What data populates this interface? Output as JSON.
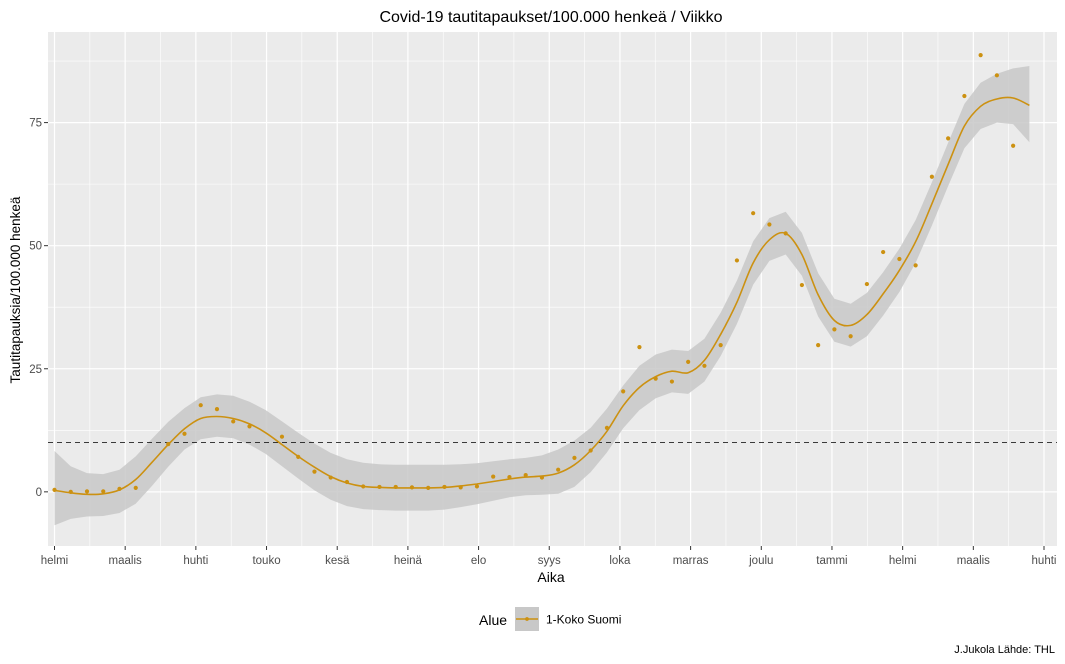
{
  "chart_data": {
    "type": "scatter",
    "title": "Covid-19 tautitapaukset/100.000 henkeä / Viikko",
    "xlabel": "Aika",
    "ylabel": "Tautitapauksia/100.000 henkeä",
    "x_ticks": [
      "helmi",
      "maalis",
      "huhti",
      "touko",
      "kesä",
      "heinä",
      "elo",
      "syys",
      "loka",
      "marras",
      "joulu",
      "tammi",
      "helmi",
      "maalis",
      "huhti"
    ],
    "x_unit": "weeks since start of data",
    "xlim": [
      -0.4,
      61.7
    ],
    "y_ticks": [
      0,
      25,
      50,
      75
    ],
    "ylim": [
      -11,
      93.4
    ],
    "reference_line": {
      "y": 10,
      "style": "dashed"
    },
    "legend": {
      "title": "Alue",
      "position": "bottom",
      "entries": [
        "1-Koko Suomi"
      ]
    },
    "grid": true,
    "colors": {
      "series": "#CC9111",
      "ribbon": "#C8C8C8",
      "panel": "#EBEBEB",
      "grid": "#FFFFFF"
    },
    "series": [
      {
        "name": "1-Koko Suomi",
        "points": [
          [
            0,
            0.4
          ],
          [
            1,
            0.0
          ],
          [
            2,
            0.1
          ],
          [
            3,
            0.1
          ],
          [
            4,
            0.6
          ],
          [
            5,
            0.8
          ],
          [
            7,
            9.7
          ],
          [
            8,
            11.8
          ],
          [
            9,
            17.6
          ],
          [
            10,
            16.8
          ],
          [
            11,
            14.3
          ],
          [
            12,
            13.3
          ],
          [
            14,
            11.2
          ],
          [
            15,
            7.1
          ],
          [
            16,
            4.1
          ],
          [
            17,
            2.9
          ],
          [
            18,
            2.0
          ],
          [
            19,
            1.1
          ],
          [
            20,
            1.0
          ],
          [
            21,
            1.0
          ],
          [
            22,
            0.9
          ],
          [
            23,
            0.8
          ],
          [
            24,
            1.0
          ],
          [
            25,
            0.9
          ],
          [
            26,
            1.1
          ],
          [
            27,
            3.1
          ],
          [
            28,
            3.0
          ],
          [
            29,
            3.4
          ],
          [
            30,
            2.9
          ],
          [
            31,
            4.5
          ],
          [
            32,
            6.9
          ],
          [
            33,
            8.4
          ],
          [
            34,
            13.0
          ],
          [
            35,
            20.4
          ],
          [
            36,
            29.4
          ],
          [
            37,
            23.0
          ],
          [
            38,
            22.4
          ],
          [
            39,
            26.4
          ],
          [
            40,
            25.6
          ],
          [
            41,
            29.8
          ],
          [
            42,
            47.0
          ],
          [
            43,
            56.6
          ],
          [
            44,
            54.3
          ],
          [
            45,
            52.5
          ],
          [
            46,
            42.0
          ],
          [
            47,
            29.8
          ],
          [
            48,
            33.0
          ],
          [
            49,
            31.6
          ],
          [
            50,
            42.2
          ],
          [
            51,
            48.7
          ],
          [
            52,
            47.3
          ],
          [
            53,
            46.0
          ],
          [
            54,
            64.0
          ],
          [
            55,
            71.8
          ],
          [
            56,
            80.4
          ],
          [
            57,
            88.7
          ],
          [
            58,
            84.6
          ],
          [
            59,
            70.3
          ]
        ],
        "smooth": [
          [
            0,
            0.3
          ],
          [
            1,
            -0.2
          ],
          [
            2,
            -0.5
          ],
          [
            3,
            -0.4
          ],
          [
            4,
            0.4
          ],
          [
            5,
            2.5
          ],
          [
            6,
            6.0
          ],
          [
            7,
            9.6
          ],
          [
            8,
            12.8
          ],
          [
            9,
            14.9
          ],
          [
            10,
            15.3
          ],
          [
            11,
            14.9
          ],
          [
            12,
            13.8
          ],
          [
            13,
            12.0
          ],
          [
            14,
            9.6
          ],
          [
            15,
            7.2
          ],
          [
            16,
            5.0
          ],
          [
            17,
            3.1
          ],
          [
            18,
            1.8
          ],
          [
            19,
            1.1
          ],
          [
            20,
            0.9
          ],
          [
            21,
            0.8
          ],
          [
            22,
            0.8
          ],
          [
            23,
            0.8
          ],
          [
            24,
            0.9
          ],
          [
            25,
            1.2
          ],
          [
            26,
            1.6
          ],
          [
            27,
            2.1
          ],
          [
            28,
            2.6
          ],
          [
            29,
            3.0
          ],
          [
            30,
            3.2
          ],
          [
            31,
            3.8
          ],
          [
            32,
            5.5
          ],
          [
            33,
            8.4
          ],
          [
            34,
            12.3
          ],
          [
            35,
            17.5
          ],
          [
            36,
            21.2
          ],
          [
            37,
            23.4
          ],
          [
            38,
            24.5
          ],
          [
            39,
            24.2
          ],
          [
            40,
            26.7
          ],
          [
            41,
            32.0
          ],
          [
            42,
            38.5
          ],
          [
            43,
            46.5
          ],
          [
            44,
            51.2
          ],
          [
            45,
            52.5
          ],
          [
            46,
            48.2
          ],
          [
            47,
            40.0
          ],
          [
            48,
            34.8
          ],
          [
            49,
            33.8
          ],
          [
            50,
            36.0
          ],
          [
            51,
            40.2
          ],
          [
            52,
            45.0
          ],
          [
            53,
            50.8
          ],
          [
            54,
            58.5
          ],
          [
            55,
            66.5
          ],
          [
            56,
            74.3
          ],
          [
            57,
            78.3
          ],
          [
            58,
            79.8
          ],
          [
            59,
            80.0
          ],
          [
            60,
            78.5
          ]
        ],
        "band": [
          [
            0,
            -6.8,
            8.3
          ],
          [
            1,
            -5.5,
            5.2
          ],
          [
            2,
            -5.0,
            3.8
          ],
          [
            3,
            -4.9,
            3.6
          ],
          [
            4,
            -4.3,
            4.5
          ],
          [
            5,
            -2.4,
            7.2
          ],
          [
            6,
            1.2,
            10.8
          ],
          [
            7,
            5.1,
            14.2
          ],
          [
            8,
            8.6,
            17.0
          ],
          [
            9,
            10.7,
            19.2
          ],
          [
            10,
            11.2,
            19.8
          ],
          [
            11,
            10.9,
            19.5
          ],
          [
            12,
            9.6,
            18.3
          ],
          [
            13,
            7.7,
            16.6
          ],
          [
            14,
            5.2,
            14.3
          ],
          [
            15,
            2.7,
            12.0
          ],
          [
            16,
            0.3,
            9.8
          ],
          [
            17,
            -1.6,
            7.9
          ],
          [
            18,
            -2.9,
            6.6
          ],
          [
            19,
            -3.5,
            5.9
          ],
          [
            20,
            -3.7,
            5.6
          ],
          [
            21,
            -3.8,
            5.5
          ],
          [
            22,
            -3.8,
            5.5
          ],
          [
            23,
            -3.8,
            5.5
          ],
          [
            24,
            -3.6,
            5.5
          ],
          [
            25,
            -3.1,
            5.6
          ],
          [
            26,
            -2.5,
            5.8
          ],
          [
            27,
            -1.8,
            6.2
          ],
          [
            28,
            -1.1,
            6.6
          ],
          [
            29,
            -0.7,
            6.9
          ],
          [
            30,
            -0.6,
            7.4
          ],
          [
            31,
            -0.4,
            8.6
          ],
          [
            32,
            1.0,
            10.4
          ],
          [
            33,
            4.0,
            13.0
          ],
          [
            34,
            8.0,
            16.9
          ],
          [
            35,
            12.9,
            21.6
          ],
          [
            36,
            16.6,
            25.6
          ],
          [
            37,
            19.0,
            27.9
          ],
          [
            38,
            20.2,
            28.9
          ],
          [
            39,
            19.9,
            28.6
          ],
          [
            40,
            22.4,
            31.1
          ],
          [
            41,
            27.6,
            36.4
          ],
          [
            42,
            34.1,
            42.9
          ],
          [
            43,
            42.1,
            50.9
          ],
          [
            44,
            46.9,
            55.6
          ],
          [
            45,
            48.2,
            56.9
          ],
          [
            46,
            43.9,
            52.6
          ],
          [
            47,
            35.6,
            44.4
          ],
          [
            48,
            30.5,
            39.2
          ],
          [
            49,
            29.5,
            38.2
          ],
          [
            50,
            31.6,
            40.4
          ],
          [
            51,
            35.8,
            44.6
          ],
          [
            52,
            40.6,
            49.4
          ],
          [
            53,
            46.5,
            55.2
          ],
          [
            54,
            54.1,
            62.9
          ],
          [
            55,
            62.1,
            70.9
          ],
          [
            56,
            69.8,
            78.8
          ],
          [
            57,
            73.7,
            83.1
          ],
          [
            58,
            75.0,
            84.9
          ],
          [
            59,
            74.7,
            86.0
          ],
          [
            60,
            71.0,
            86.5
          ]
        ]
      }
    ]
  },
  "caption": "J.Jukola  Lähde: THL"
}
